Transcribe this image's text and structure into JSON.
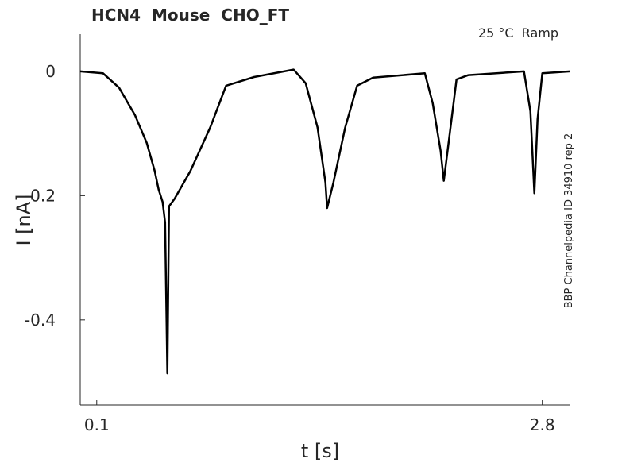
{
  "chart_data": {
    "type": "line",
    "title": "HCN4  Mouse  CHO_FT",
    "annotation": "25 °C  Ramp",
    "side_label": "BBP Channelpedia ID 34910 rep 2",
    "x_label": "t [s]",
    "y_label": "I [nA]",
    "x": [
      0,
      0.138,
      0.235,
      0.331,
      0.403,
      0.451,
      0.475,
      0.499,
      0.514,
      0.528,
      0.538,
      0.572,
      0.668,
      0.788,
      0.884,
      1.053,
      1.293,
      1.366,
      1.438,
      1.486,
      1.496,
      1.534,
      1.606,
      1.678,
      1.775,
      2.088,
      2.136,
      2.184,
      2.203,
      2.232,
      2.28,
      2.352,
      2.689,
      2.728,
      2.752,
      2.771,
      2.8,
      2.968
    ],
    "series": [
      {
        "color": "#000000",
        "values": [
          0,
          -0.003,
          -0.026,
          -0.07,
          -0.115,
          -0.16,
          -0.19,
          -0.21,
          -0.243,
          -0.486,
          -0.217,
          -0.205,
          -0.16,
          -0.09,
          -0.023,
          -0.009,
          0.003,
          -0.019,
          -0.09,
          -0.179,
          -0.22,
          -0.179,
          -0.09,
          -0.023,
          -0.01,
          -0.003,
          -0.051,
          -0.128,
          -0.176,
          -0.115,
          -0.013,
          -0.006,
          0,
          -0.064,
          -0.196,
          -0.077,
          -0.003,
          0
        ]
      }
    ],
    "xlim": [
      0,
      2.97
    ],
    "ylim": [
      -0.537,
      0.06
    ],
    "xticks": [
      0.1,
      2.8
    ],
    "yticks": [
      0,
      -0.2,
      -0.4
    ]
  }
}
